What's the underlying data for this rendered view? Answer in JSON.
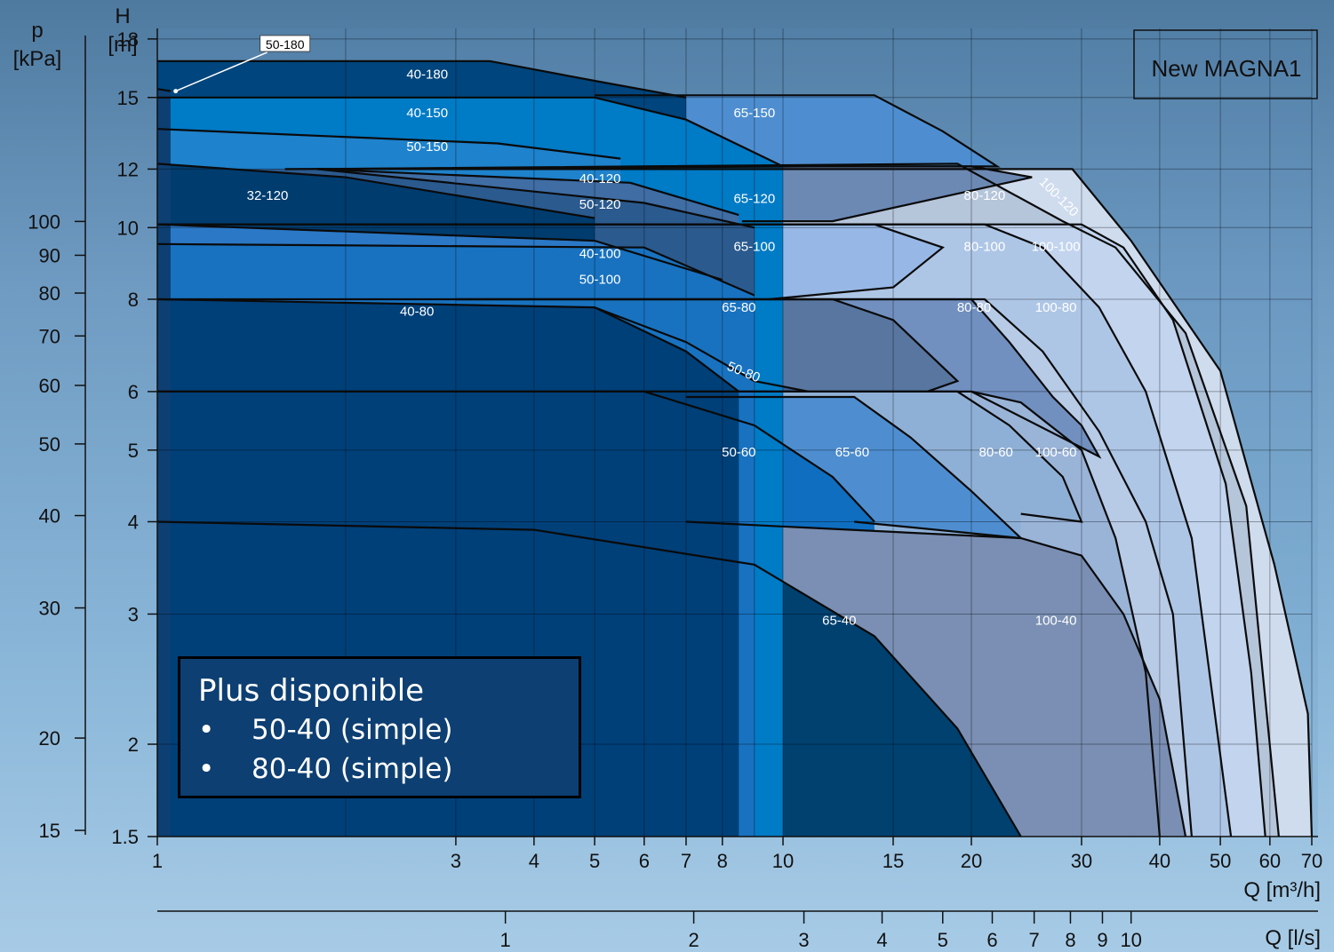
{
  "chart_data": {
    "type": "area",
    "title": "New MAGNA1",
    "x_axis": {
      "label": "Q [m³/h]",
      "scale": "log",
      "range": [
        1,
        70
      ],
      "ticks": [
        "1",
        "3",
        "4",
        "5",
        "6",
        "7",
        "8",
        "10",
        "15",
        "20",
        "30",
        "40",
        "50",
        "60",
        "70"
      ],
      "tick_values": [
        1,
        3,
        4,
        5,
        6,
        7,
        8,
        10,
        15,
        20,
        30,
        40,
        50,
        60,
        70
      ]
    },
    "x_axis_secondary": {
      "label": "Q [l/s]",
      "ticks": [
        "1",
        "2",
        "3",
        "4",
        "5",
        "6",
        "7",
        "8",
        "9",
        "10"
      ],
      "tick_values": [
        1,
        2,
        3,
        4,
        5,
        6,
        7,
        8,
        9,
        10
      ]
    },
    "y_axis": {
      "label_line1": "H",
      "label_line2": "[m]",
      "scale": "log",
      "range": [
        1.5,
        18
      ],
      "ticks": [
        "1.5",
        "2",
        "3",
        "4",
        "5",
        "6",
        "8",
        "10",
        "12",
        "15",
        "18"
      ],
      "tick_values": [
        1.5,
        2,
        3,
        4,
        5,
        6,
        8,
        10,
        12,
        15,
        18
      ]
    },
    "y_axis_secondary": {
      "label_line1": "p",
      "label_line2": "[kPa]",
      "ticks": [
        "15",
        "20",
        "30",
        "40",
        "50",
        "60",
        "70",
        "80",
        "90",
        "100"
      ],
      "tick_values": [
        15,
        20,
        30,
        40,
        50,
        60,
        70,
        80,
        90,
        100
      ]
    },
    "grid": true,
    "series": [
      {
        "name": "100-120",
        "color": "#cfdcee",
        "points": [
          [
            1.8,
            12
          ],
          [
            29,
            12
          ],
          [
            36,
            9.6
          ],
          [
            50,
            6.4
          ],
          [
            61,
            3.5
          ],
          [
            69,
            2.2
          ],
          [
            70,
            1.5
          ]
        ]
      },
      {
        "name": "80-120",
        "color": "#b5c5da",
        "points": [
          [
            1.8,
            12
          ],
          [
            19,
            12.2
          ],
          [
            28,
            10.2
          ],
          [
            34,
            9.4
          ],
          [
            44,
            7.2
          ],
          [
            55,
            4.2
          ],
          [
            62,
            1.5
          ]
        ]
      },
      {
        "name": "65-150",
        "color": "#4e8ed0",
        "points": [
          [
            5,
            15.1
          ],
          [
            14,
            15.1
          ],
          [
            18,
            13.5
          ],
          [
            22,
            12.1
          ],
          [
            13,
            12.1
          ],
          [
            7,
            12.1
          ]
        ]
      },
      {
        "name": "100-100",
        "color": "#c2d4ee",
        "points": [
          [
            1,
            10.1
          ],
          [
            30,
            10.1
          ],
          [
            35,
            9.4
          ],
          [
            42,
            7.5
          ],
          [
            51,
            4.5
          ],
          [
            56,
            2.5
          ],
          [
            59,
            1.5
          ]
        ]
      },
      {
        "name": "80-100",
        "color": "#aec6e6",
        "points": [
          [
            1,
            10.1
          ],
          [
            21,
            10.1
          ],
          [
            26,
            9.4
          ],
          [
            32,
            7.8
          ],
          [
            38,
            6
          ],
          [
            45,
            3.8
          ],
          [
            52,
            1.5
          ]
        ]
      },
      {
        "name": "65-120",
        "color": "#6c89b4",
        "points": [
          [
            1.6,
            12
          ],
          [
            11,
            12.1
          ],
          [
            20,
            12.1
          ],
          [
            25,
            11.7
          ],
          [
            12,
            10.2
          ],
          [
            8.6,
            10.2
          ]
        ]
      },
      {
        "name": "65-100",
        "color": "#97b8e6",
        "points": [
          [
            2,
            10.1
          ],
          [
            14,
            10.1
          ],
          [
            18,
            9.4
          ],
          [
            15,
            8.3
          ],
          [
            9.5,
            8
          ]
        ]
      },
      {
        "name": "100-80",
        "color": "#b7cae6",
        "points": [
          [
            1,
            8
          ],
          [
            21,
            8
          ],
          [
            26,
            6.8
          ],
          [
            32,
            5.3
          ],
          [
            38,
            4
          ],
          [
            42,
            3
          ],
          [
            45,
            1.5
          ]
        ]
      },
      {
        "name": "80-80",
        "color": "#7190c0",
        "points": [
          [
            3,
            8
          ],
          [
            14,
            8
          ],
          [
            20,
            8
          ],
          [
            23,
            7
          ],
          [
            27,
            5.9
          ],
          [
            30,
            5.4
          ],
          [
            32,
            4.9
          ],
          [
            20,
            6
          ]
        ]
      },
      {
        "name": "65-80",
        "color": "#58769f",
        "points": [
          [
            3,
            8
          ],
          [
            12,
            8
          ],
          [
            15,
            7.5
          ],
          [
            19,
            6.2
          ],
          [
            17,
            6
          ]
        ]
      },
      {
        "name": "50-80",
        "color": "#3f5f92",
        "points": [
          [
            5,
            7.8
          ],
          [
            7,
            7
          ],
          [
            9,
            6.2
          ],
          [
            11,
            6
          ]
        ]
      },
      {
        "name": "100-60",
        "color": "#9ab4d8",
        "points": [
          [
            1,
            6
          ],
          [
            20,
            6
          ],
          [
            24,
            5.8
          ],
          [
            30,
            5
          ],
          [
            34,
            3.8
          ],
          [
            38,
            2.5
          ],
          [
            40,
            1.5
          ]
        ]
      },
      {
        "name": "80-60",
        "color": "#8fb0d6",
        "points": [
          [
            5,
            6
          ],
          [
            14,
            6
          ],
          [
            19,
            6
          ],
          [
            23,
            5.4
          ],
          [
            28,
            4.6
          ],
          [
            30,
            4
          ],
          [
            24,
            4.1
          ]
        ]
      },
      {
        "name": "65-60",
        "color": "#4e8ed0",
        "points": [
          [
            7,
            5.9
          ],
          [
            13,
            5.9
          ],
          [
            16,
            5.2
          ],
          [
            20,
            4.4
          ],
          [
            24,
            3.8
          ],
          [
            13,
            4
          ]
        ]
      },
      {
        "name": "50-60",
        "color": "#0f6ec0",
        "points": [
          [
            1,
            6
          ],
          [
            6,
            6
          ],
          [
            9,
            5.4
          ],
          [
            12,
            4.6
          ],
          [
            14,
            4
          ]
        ]
      },
      {
        "name": "100-40",
        "color": "#7a8fb3",
        "points": [
          [
            7,
            4
          ],
          [
            24,
            3.8
          ],
          [
            30,
            3.6
          ],
          [
            35,
            3
          ],
          [
            40,
            2.3
          ],
          [
            44,
            1.5
          ]
        ]
      },
      {
        "name": "65-40",
        "color": "#004170",
        "points": [
          [
            1,
            4
          ],
          [
            4,
            3.9
          ],
          [
            9,
            3.5
          ],
          [
            14,
            2.8
          ],
          [
            19,
            2.1
          ],
          [
            24,
            1.5
          ]
        ]
      },
      {
        "name": "40-180",
        "color": "#00457d",
        "points": [
          [
            1,
            16.8
          ],
          [
            3.4,
            16.8
          ],
          [
            5,
            15.8
          ],
          [
            7,
            15
          ]
        ]
      },
      {
        "name": "40-150",
        "color": "#007bc6",
        "points": [
          [
            1,
            15
          ],
          [
            5,
            15
          ],
          [
            7,
            14
          ],
          [
            10,
            12.1
          ]
        ]
      },
      {
        "name": "50-150",
        "color": "#1e82cc",
        "points": [
          [
            1,
            13.6
          ],
          [
            3.5,
            13
          ],
          [
            5.5,
            12.4
          ]
        ]
      },
      {
        "name": "40-120",
        "color": "#3f6da4",
        "points": [
          [
            1.8,
            12
          ],
          [
            5.7,
            11.5
          ],
          [
            8.5,
            10.4
          ]
        ]
      },
      {
        "name": "50-120",
        "color": "#2b5a8e",
        "points": [
          [
            1.8,
            12
          ],
          [
            6,
            10.8
          ],
          [
            9,
            10
          ]
        ]
      },
      {
        "name": "32-120",
        "color": "#003c6e",
        "points": [
          [
            1,
            12.2
          ],
          [
            2,
            11.7
          ],
          [
            5,
            10.3
          ]
        ]
      },
      {
        "name": "40-100",
        "color": "#2b78c6",
        "points": [
          [
            1,
            10.1
          ],
          [
            5,
            9.6
          ],
          [
            8,
            8.5
          ]
        ]
      },
      {
        "name": "50-100",
        "color": "#1872c0",
        "points": [
          [
            1,
            9.5
          ],
          [
            6,
            9.4
          ],
          [
            9,
            8.1
          ]
        ]
      },
      {
        "name": "40-80",
        "color": "#004079",
        "points": [
          [
            1,
            8
          ],
          [
            5,
            7.8
          ],
          [
            7,
            6.8
          ],
          [
            8.5,
            6
          ]
        ]
      },
      {
        "name": "50-180",
        "color": "#0d3f72",
        "points": [
          [
            1,
            15.4
          ],
          [
            1.05,
            15.3
          ]
        ]
      }
    ],
    "region_labels": [
      {
        "text": "50-180",
        "x": 1.6,
        "y": 17.6,
        "boxed": true
      },
      {
        "text": "40-180",
        "x": 2.7,
        "y": 15.9
      },
      {
        "text": "40-150",
        "x": 2.7,
        "y": 14.1
      },
      {
        "text": "65-150",
        "x": 9.0,
        "y": 14.1
      },
      {
        "text": "50-150",
        "x": 2.7,
        "y": 12.7
      },
      {
        "text": "32-120",
        "x": 1.5,
        "y": 10.9
      },
      {
        "text": "40-120",
        "x": 5.1,
        "y": 11.5
      },
      {
        "text": "50-120",
        "x": 5.1,
        "y": 10.6
      },
      {
        "text": "65-120",
        "x": 9.0,
        "y": 10.8
      },
      {
        "text": "80-120",
        "x": 21.0,
        "y": 10.9
      },
      {
        "text": "100-120",
        "x": 27.3,
        "y": 10.9,
        "rotate": 45
      },
      {
        "text": "40-100",
        "x": 5.1,
        "y": 9.1
      },
      {
        "text": "50-100",
        "x": 5.1,
        "y": 8.4
      },
      {
        "text": "65-100",
        "x": 9.0,
        "y": 9.3
      },
      {
        "text": "80-100",
        "x": 21.0,
        "y": 9.3
      },
      {
        "text": "100-100",
        "x": 27.3,
        "y": 9.3
      },
      {
        "text": "40-80",
        "x": 2.6,
        "y": 7.6
      },
      {
        "text": "65-80",
        "x": 8.5,
        "y": 7.7
      },
      {
        "text": "80-80",
        "x": 20.2,
        "y": 7.7
      },
      {
        "text": "100-80",
        "x": 27.3,
        "y": 7.7
      },
      {
        "text": "50-80",
        "x": 8.6,
        "y": 6.3,
        "rotate": 22
      },
      {
        "text": "50-60",
        "x": 8.5,
        "y": 4.9
      },
      {
        "text": "65-60",
        "x": 12.9,
        "y": 4.9
      },
      {
        "text": "80-60",
        "x": 21.9,
        "y": 4.9
      },
      {
        "text": "100-60",
        "x": 27.3,
        "y": 4.9
      },
      {
        "text": "65-40",
        "x": 12.3,
        "y": 2.9
      },
      {
        "text": "100-40",
        "x": 27.3,
        "y": 2.9
      }
    ]
  },
  "note_box": {
    "title": "Plus disponible",
    "items": [
      {
        "bullet": "•",
        "text": "50-40 (simple)"
      },
      {
        "bullet": "•",
        "text": "80-40 (simple)"
      }
    ]
  }
}
